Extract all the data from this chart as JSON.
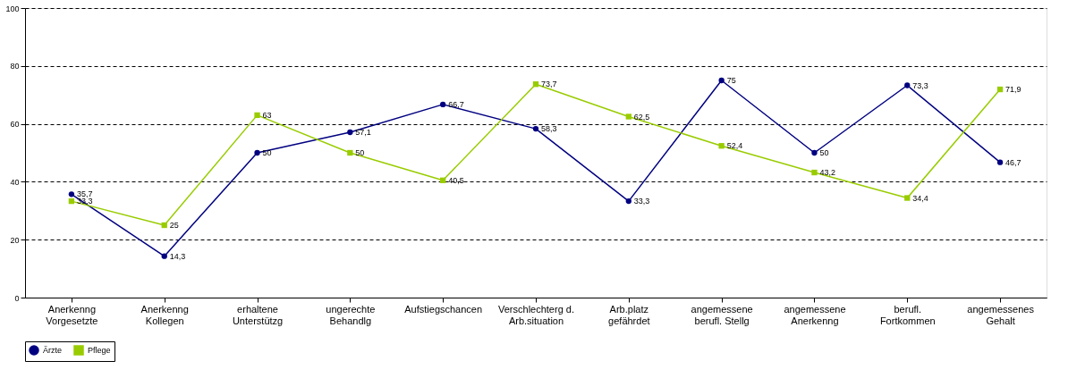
{
  "chart_data": {
    "type": "line",
    "categories": [
      "Anerkenng\nVorgesetzte",
      "Anerkenng\nKollegen",
      "erhaltene\nUnterstützg",
      "ungerechte\nBehandlg",
      "Aufstiegschancen",
      "Verschlechterg d.\nArb.situation",
      "Arb.platz\ngefährdet",
      "angemessene\nberufl. Stellg",
      "angemessene\nAnerkenng",
      "berufl.\nFortkommen",
      "angemessenes\nGehalt"
    ],
    "series": [
      {
        "name": "Ärzte",
        "color": "#000080",
        "marker": "circle",
        "values": [
          35.7,
          14.3,
          50,
          57.1,
          66.7,
          58.3,
          33.3,
          75,
          50,
          73.3,
          46.7
        ],
        "value_labels": [
          "35,7",
          "14,3",
          "50",
          "57,1",
          "66,7",
          "58,3",
          "33,3",
          "75",
          "50",
          "73,3",
          "46,7"
        ]
      },
      {
        "name": "Pflege",
        "color": "#99cc00",
        "marker": "square",
        "values": [
          33.3,
          25,
          63,
          50,
          40.5,
          73.7,
          62.5,
          52.4,
          43.2,
          34.4,
          71.9
        ],
        "value_labels": [
          "33,3",
          "25",
          "63",
          "50",
          "40,5",
          "73,7",
          "62,5",
          "52,4",
          "43,2",
          "34,4",
          "71,9"
        ]
      }
    ],
    "ylim": [
      0,
      100
    ],
    "yticks": [
      0,
      20,
      40,
      60,
      80,
      100
    ],
    "grid": "y",
    "legend": "bottom",
    "line_style": "solid"
  }
}
